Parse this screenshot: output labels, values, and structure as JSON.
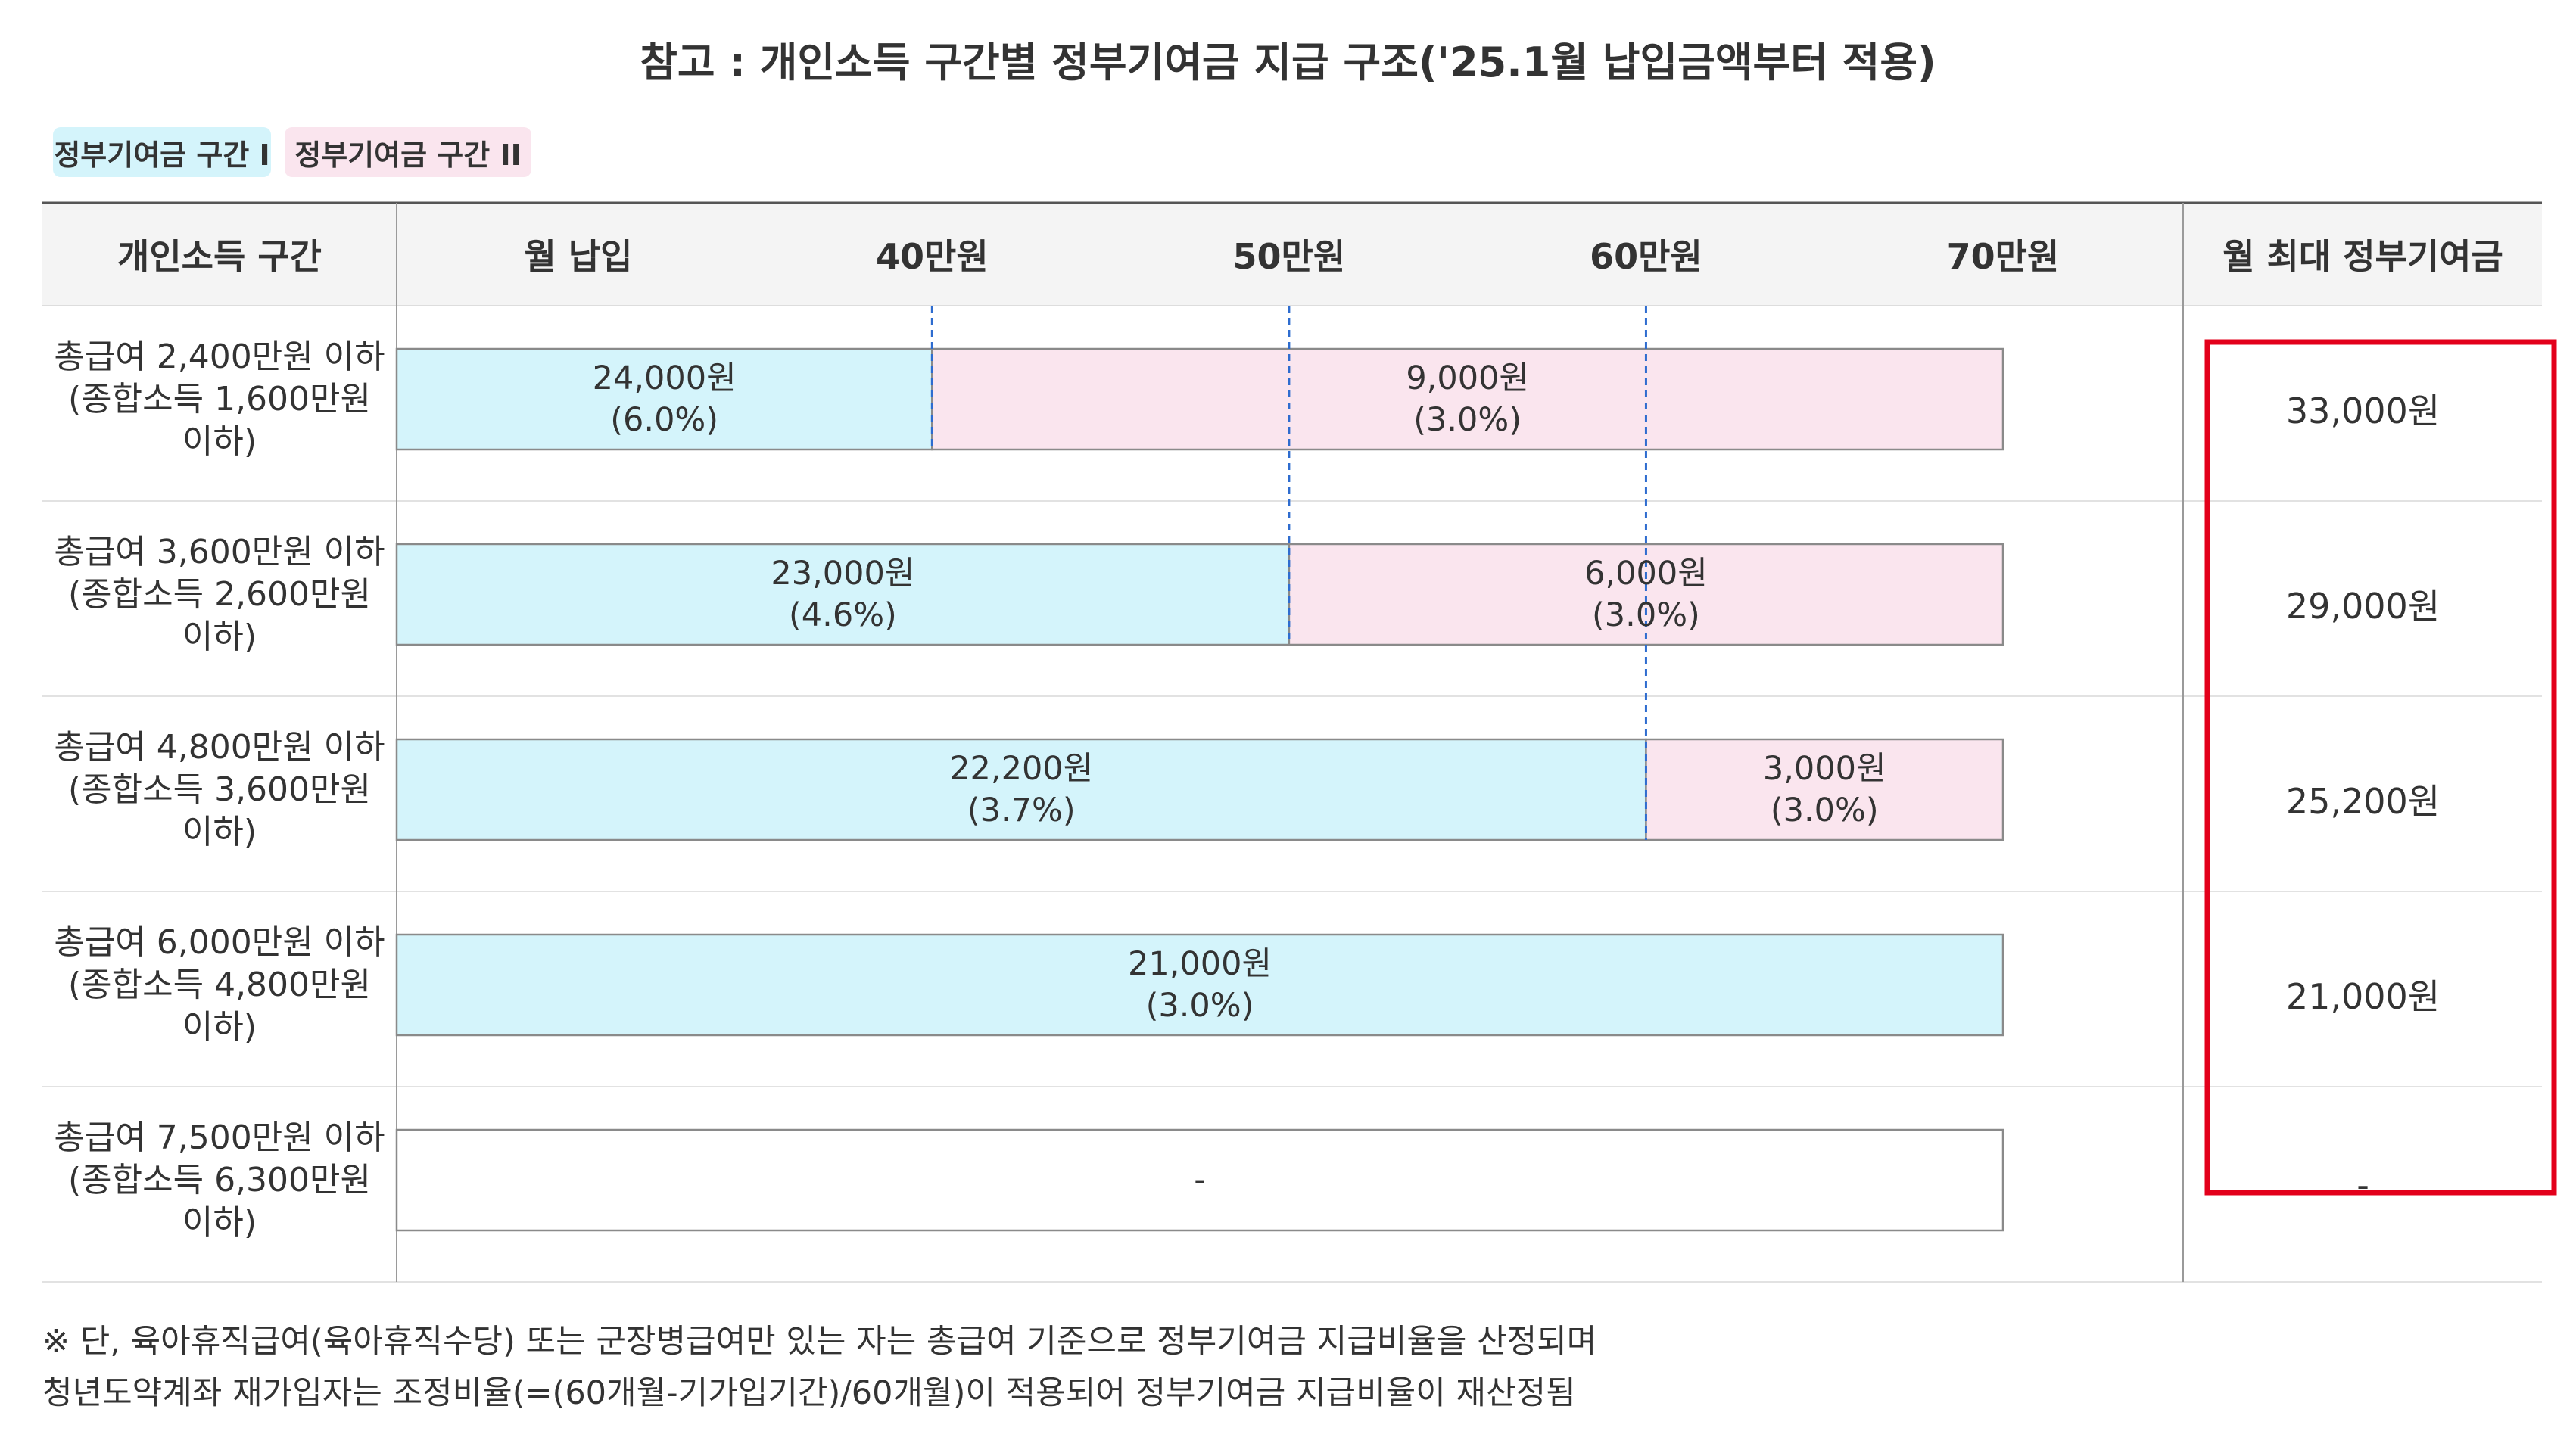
{
  "title": "참고 : 개인소득 구간별 정부기여금 지급 구조('25.1월 납입금액부터 적용)",
  "legend": [
    {
      "label": "정부기여금 구간 I",
      "color": "#d4f4fb"
    },
    {
      "label": "정부기여금 구간 II",
      "color": "#fae5ee"
    }
  ],
  "table": {
    "col_income": "개인소득 구간",
    "col_payment": "월 납입",
    "col_max": "월 최대 정부기여금"
  },
  "chart_data": {
    "type": "bar",
    "orientation": "horizontal",
    "stacked": true,
    "x_ticks": [
      {
        "value": 40,
        "label": "40만원"
      },
      {
        "value": 50,
        "label": "50만원"
      },
      {
        "value": 60,
        "label": "60만원"
      },
      {
        "value": 70,
        "label": "70만원"
      }
    ],
    "xlim": [
      25,
      70
    ],
    "rows": [
      {
        "income_lines": [
          "총급여 2,400만원 이하",
          "(종합소득 1,600만원",
          "이하)"
        ],
        "max": "33,000원",
        "segments": [
          {
            "band": 0,
            "from": 25,
            "to": 40,
            "amount": "24,000원",
            "rate": "(6.0%)"
          },
          {
            "band": 1,
            "from": 40,
            "to": 70,
            "amount": "9,000원",
            "rate": "(3.0%)"
          }
        ]
      },
      {
        "income_lines": [
          "총급여 3,600만원 이하",
          "(종합소득 2,600만원",
          "이하)"
        ],
        "max": "29,000원",
        "segments": [
          {
            "band": 0,
            "from": 25,
            "to": 50,
            "amount": "23,000원",
            "rate": "(4.6%)"
          },
          {
            "band": 1,
            "from": 50,
            "to": 70,
            "amount": "6,000원",
            "rate": "(3.0%)"
          }
        ]
      },
      {
        "income_lines": [
          "총급여 4,800만원 이하",
          "(종합소득 3,600만원",
          "이하)"
        ],
        "max": "25,200원",
        "segments": [
          {
            "band": 0,
            "from": 25,
            "to": 60,
            "amount": "22,200원",
            "rate": "(3.7%)"
          },
          {
            "band": 1,
            "from": 60,
            "to": 70,
            "amount": "3,000원",
            "rate": "(3.0%)"
          }
        ]
      },
      {
        "income_lines": [
          "총급여 6,000만원 이하",
          "(종합소득 4,800만원",
          "이하)"
        ],
        "max": "21,000원",
        "segments": [
          {
            "band": 0,
            "from": 25,
            "to": 70,
            "amount": "21,000원",
            "rate": "(3.0%)"
          }
        ]
      },
      {
        "income_lines": [
          "총급여 7,500만원 이하",
          "(종합소득 6,300만원",
          "이하)"
        ],
        "max": "-",
        "segments": [
          {
            "band": -1,
            "from": 25,
            "to": 70,
            "amount": "-",
            "rate": ""
          }
        ]
      }
    ]
  },
  "notes": [
    "※ 단, 육아휴직급여(육아휴직수당) 또는 군장병급여만 있는 자는 총급여 기준으로 정부기여금 지급비율을 산정되며",
    "청년도약계좌 재가입자는 조정비율(=(60개월-기가입기간)/60개월)이 적용되어 정부기여금 지급비율이 재산정됨"
  ],
  "colors": {
    "band_none": "#ffffff",
    "bar_border": "#8a8a8a",
    "divider": "#2e6ccf",
    "highlight": "#e3001b",
    "header_bg": "#f4f4f4"
  }
}
